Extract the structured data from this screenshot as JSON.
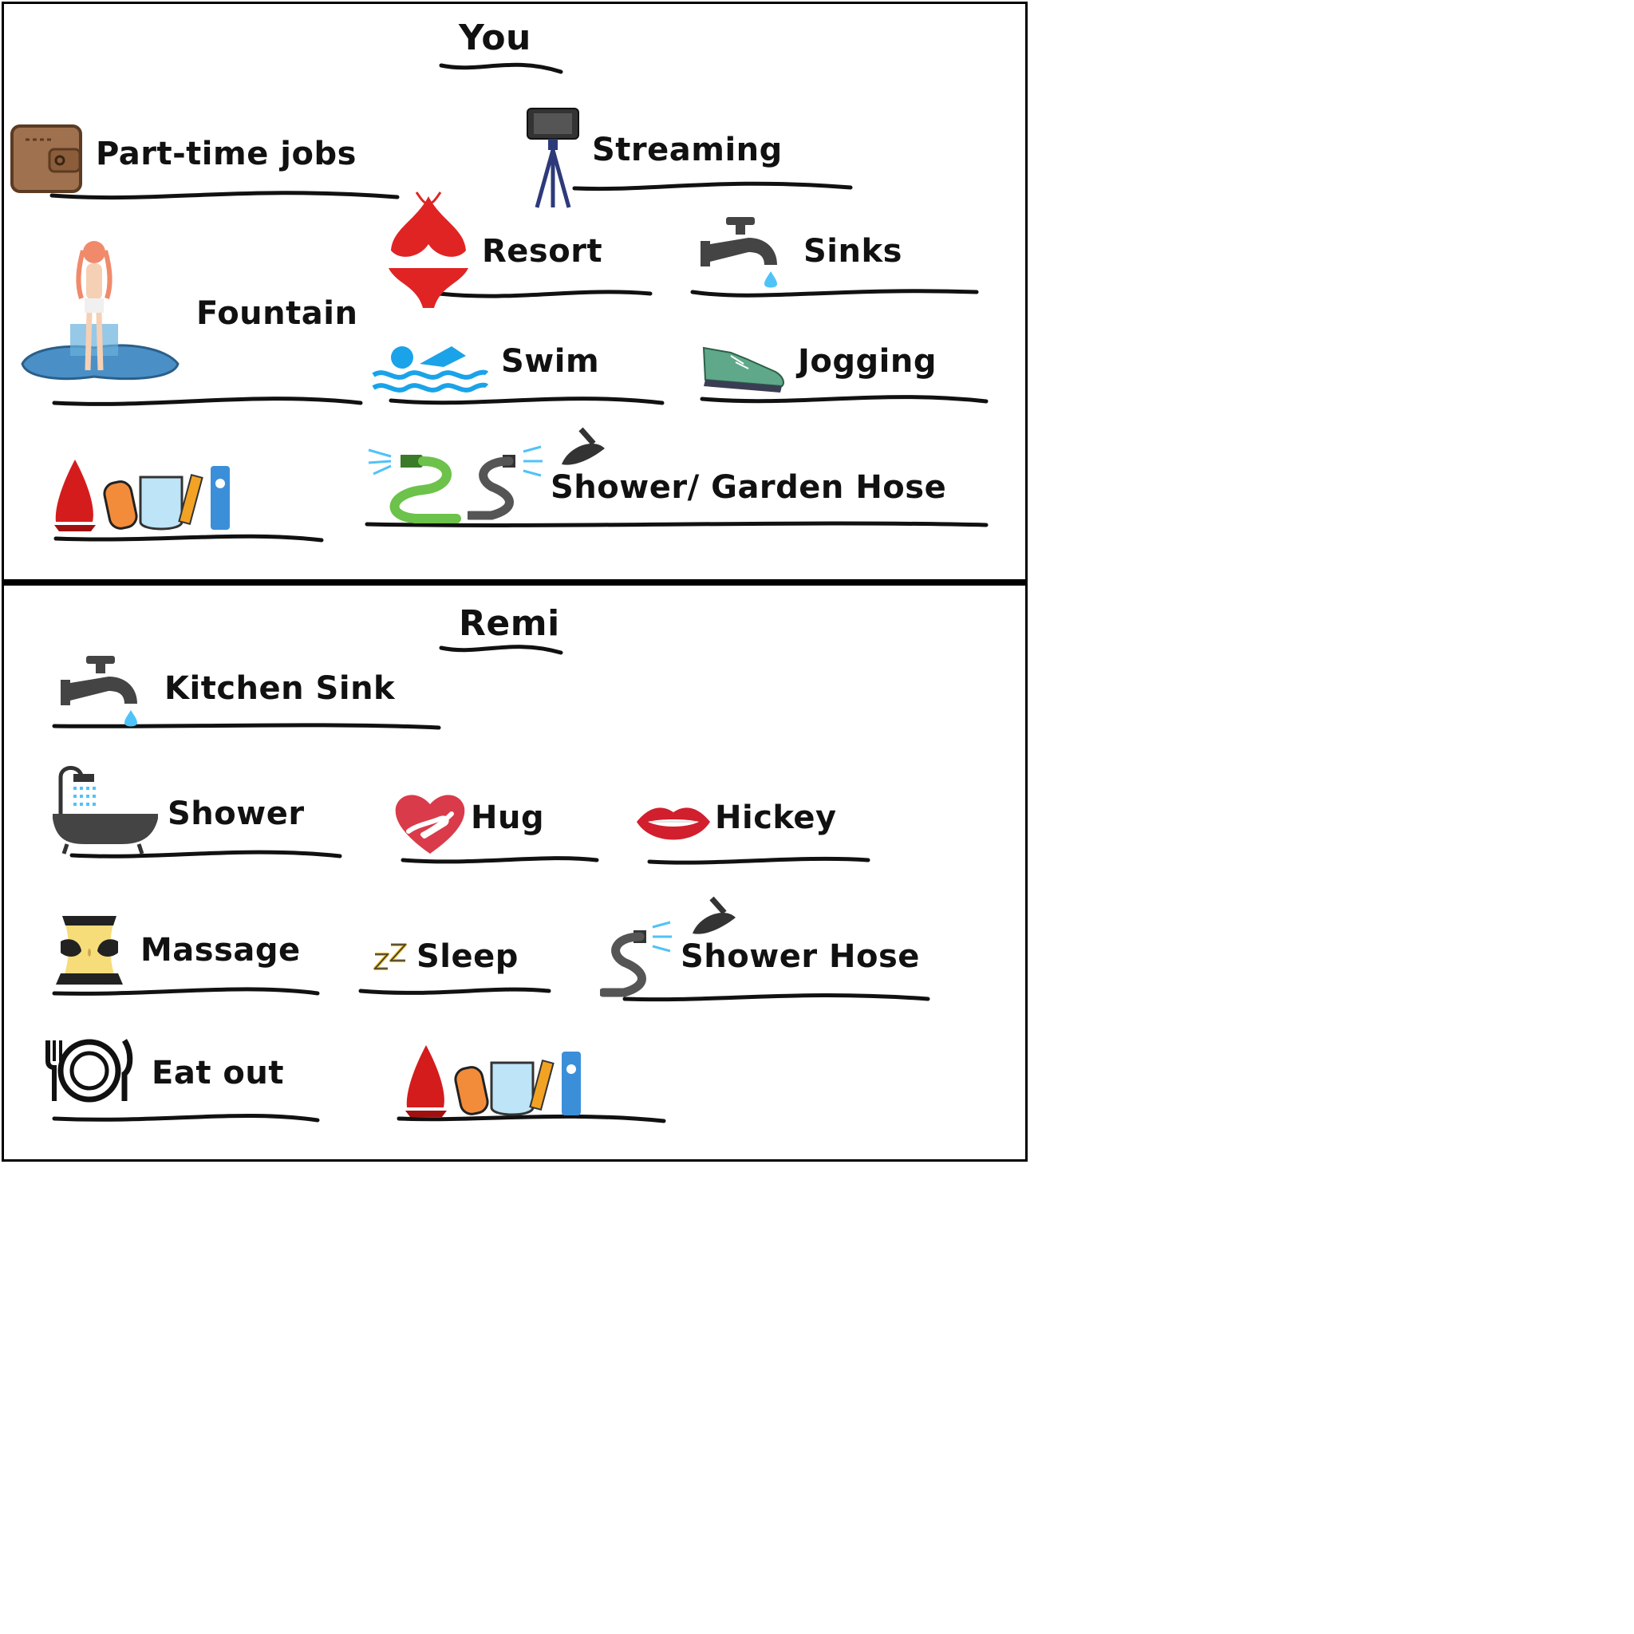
{
  "panels": {
    "you": {
      "title": "You",
      "items": {
        "part_time_jobs": "Part-time jobs",
        "streaming": "Streaming",
        "resort": "Resort",
        "sinks": "Sinks",
        "fountain": "Fountain",
        "swim": "Swim",
        "jogging": "Jogging",
        "shower_garden_hose": "Shower/ Garden Hose"
      },
      "icons": [
        "wallet-icon",
        "tripod-phone-icon",
        "bikini-icon",
        "faucet-icon",
        "fountain-girl-icon",
        "swim-icon",
        "sneaker-icon",
        "toys-icon",
        "garden-hose-icon",
        "shower-hose-icon",
        "plunger-icon"
      ]
    },
    "remi": {
      "title": "Remi",
      "items": {
        "kitchen_sink": "Kitchen Sink",
        "shower": "Shower",
        "hug": "Hug",
        "hickey": "Hickey",
        "massage": "Massage",
        "sleep": "Sleep",
        "shower_hose": "Shower Hose",
        "eat_out": "Eat out"
      },
      "icons": [
        "faucet-icon",
        "bathtub-icon",
        "heart-hug-icon",
        "lips-icon",
        "massage-icon",
        "zzz-icon",
        "shower-hose-icon",
        "plunger-icon",
        "plate-cutlery-icon",
        "toys-icon"
      ]
    }
  },
  "colors": {
    "border": "#000000",
    "text": "#111111",
    "water": "#4fc3f7",
    "red": "#e02424",
    "hose_green": "#6cc24a",
    "dark_grey": "#444444"
  }
}
